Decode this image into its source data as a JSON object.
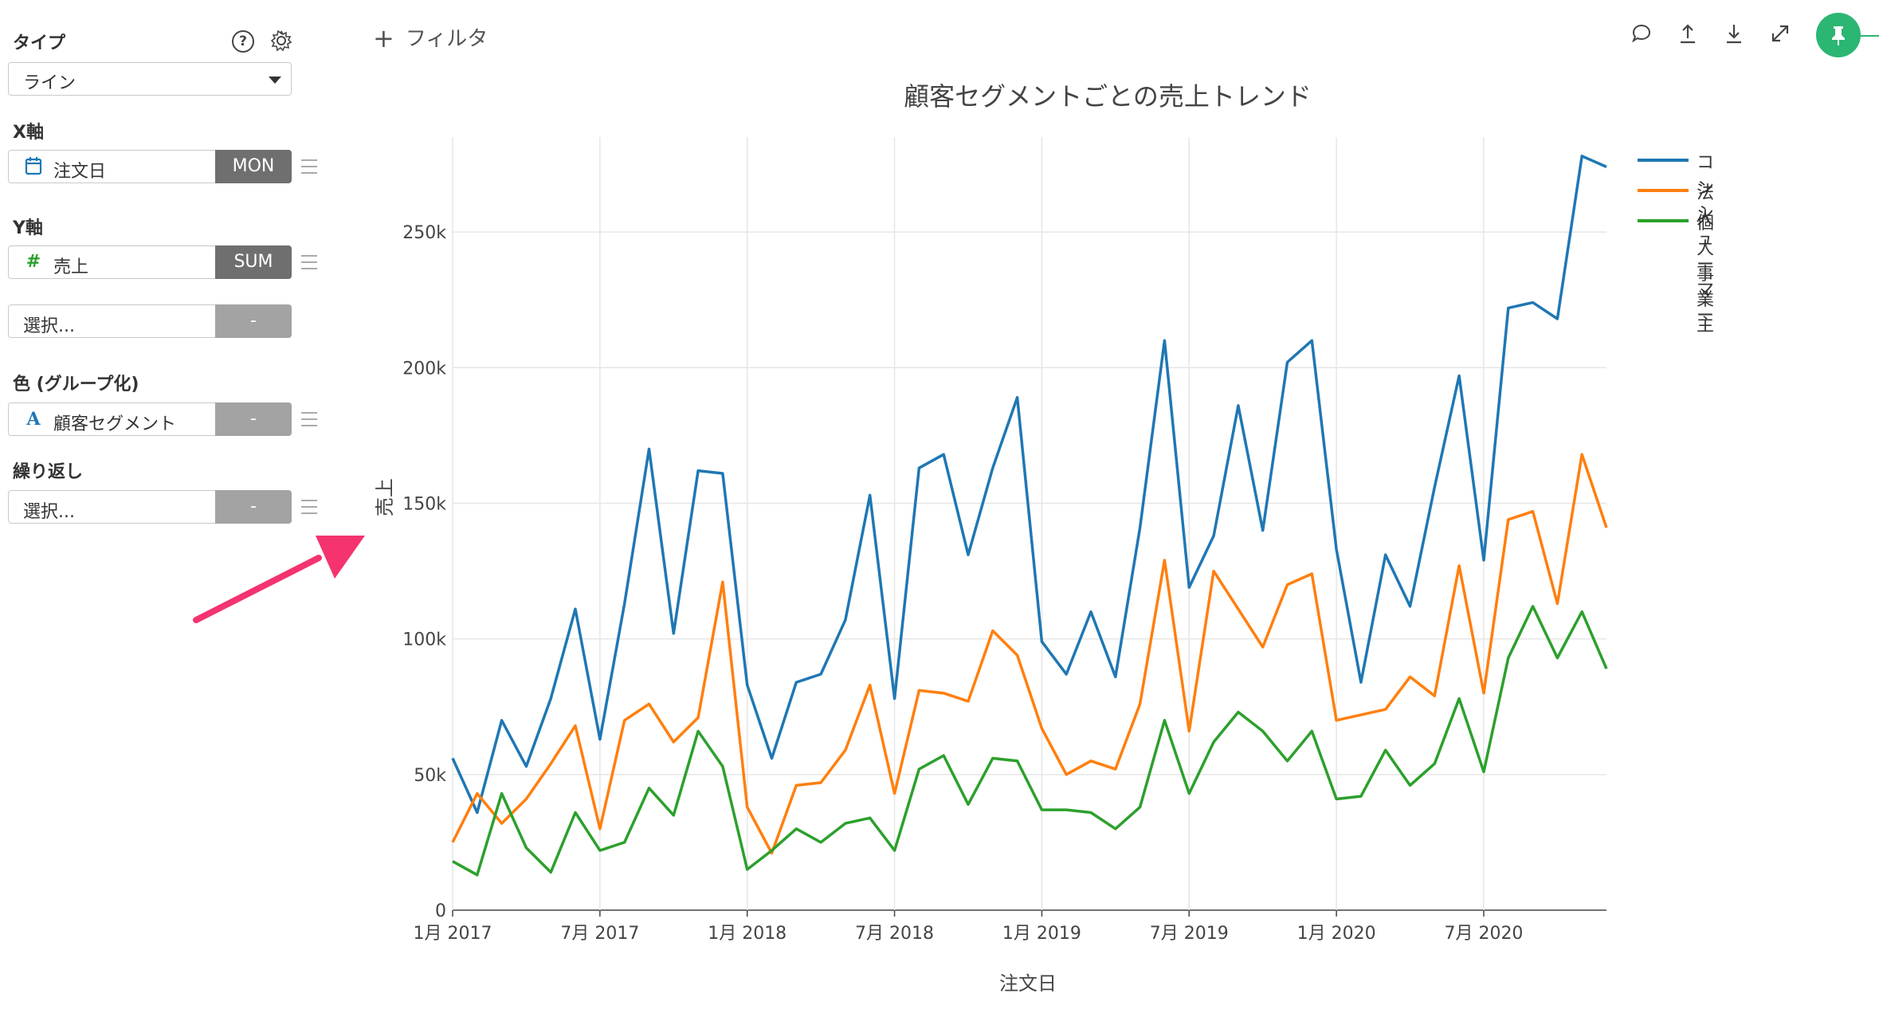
{
  "sidebar": {
    "type_label": "タイプ",
    "type_value": "ライン",
    "x_label": "X軸",
    "x_field": "注文日",
    "x_agg": "MON",
    "y_label": "Y軸",
    "y_field": "売上",
    "y_agg": "SUM",
    "y2_placeholder": "選択...",
    "y2_agg": "-",
    "color_label": "色 (グループ化)",
    "color_field": "顧客セグメント",
    "color_agg": "-",
    "repeat_label": "繰り返し",
    "repeat_placeholder": "選択...",
    "repeat_agg": "-"
  },
  "toolbar": {
    "filter_label": "フィルタ"
  },
  "colors": {
    "accent_green": "#2bb673",
    "agg_dark": "#6f6f6f",
    "agg_light": "#a3a3a3",
    "annotation_arrow": "#f4336f"
  },
  "chart_data": {
    "type": "line",
    "title": "顧客セグメントごとの売上トレンド",
    "xlabel": "注文日",
    "ylabel": "売上",
    "x_ticks": [
      "1月 2017",
      "7月 2017",
      "1月 2018",
      "7月 2018",
      "1月 2019",
      "7月 2019",
      "1月 2020",
      "7月 2020"
    ],
    "y_ticks": [
      "0",
      "50k",
      "100k",
      "150k",
      "200k",
      "250k"
    ],
    "ylim": [
      0,
      285000
    ],
    "x": [
      "2017-01",
      "2017-02",
      "2017-03",
      "2017-04",
      "2017-05",
      "2017-06",
      "2017-07",
      "2017-08",
      "2017-09",
      "2017-10",
      "2017-11",
      "2017-12",
      "2018-01",
      "2018-02",
      "2018-03",
      "2018-04",
      "2018-05",
      "2018-06",
      "2018-07",
      "2018-08",
      "2018-09",
      "2018-10",
      "2018-11",
      "2018-12",
      "2019-01",
      "2019-02",
      "2019-03",
      "2019-04",
      "2019-05",
      "2019-06",
      "2019-07",
      "2019-08",
      "2019-09",
      "2019-10",
      "2019-11",
      "2019-12",
      "2020-01",
      "2020-02",
      "2020-03",
      "2020-04",
      "2020-05",
      "2020-06",
      "2020-07",
      "2020-08",
      "2020-09",
      "2020-10",
      "2020-11",
      "2020-12"
    ],
    "series": [
      {
        "name": "コンシューマー",
        "color": "#1f77b4",
        "values": [
          56000,
          36000,
          70000,
          53000,
          78000,
          111000,
          63000,
          113000,
          170000,
          102000,
          162000,
          161000,
          83000,
          56000,
          84000,
          87000,
          107000,
          153000,
          78000,
          163000,
          168000,
          131000,
          163000,
          189000,
          99000,
          87000,
          110000,
          86000,
          141000,
          210000,
          119000,
          138000,
          186000,
          140000,
          202000,
          210000,
          133000,
          84000,
          131000,
          112000,
          156000,
          197000,
          129000,
          222000,
          224000,
          218000,
          278000,
          274000
        ]
      },
      {
        "name": "法人",
        "color": "#ff7f0e",
        "values": [
          25000,
          43000,
          32000,
          41000,
          54000,
          68000,
          30000,
          70000,
          76000,
          62000,
          71000,
          121000,
          38000,
          21000,
          46000,
          47000,
          59000,
          83000,
          43000,
          81000,
          80000,
          77000,
          103000,
          94000,
          67000,
          50000,
          55000,
          52000,
          76000,
          129000,
          66000,
          125000,
          111000,
          97000,
          120000,
          124000,
          70000,
          72000,
          74000,
          86000,
          79000,
          127000,
          80000,
          144000,
          147000,
          113000,
          168000,
          141000
        ]
      },
      {
        "name": "個人事業主",
        "color": "#2ca02c",
        "values": [
          18000,
          13000,
          43000,
          23000,
          14000,
          36000,
          22000,
          25000,
          45000,
          35000,
          66000,
          53000,
          15000,
          22000,
          30000,
          25000,
          32000,
          34000,
          22000,
          52000,
          57000,
          39000,
          56000,
          55000,
          37000,
          37000,
          36000,
          30000,
          38000,
          70000,
          43000,
          62000,
          73000,
          66000,
          55000,
          66000,
          41000,
          42000,
          59000,
          46000,
          54000,
          78000,
          51000,
          93000,
          112000,
          93000,
          110000,
          89000
        ]
      }
    ],
    "grid": true,
    "legend_position": "top-right"
  }
}
